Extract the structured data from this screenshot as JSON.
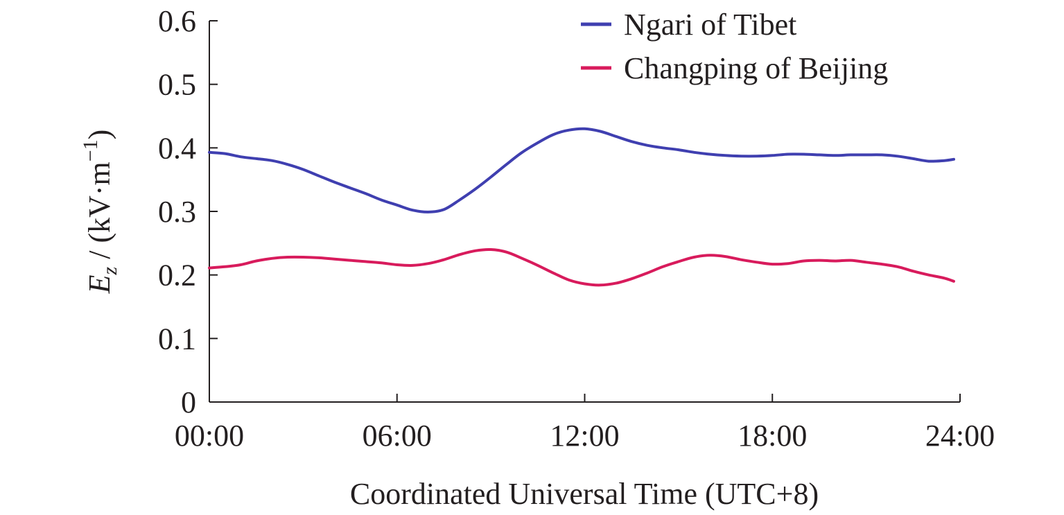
{
  "chart_data": {
    "type": "line",
    "title": "",
    "xlabel": "Coordinated Universal Time (UTC+8)",
    "ylabel": {
      "symbol": "E",
      "subscript": "z",
      "unit_prefix": " / (kV·m",
      "unit_exponent": "−1",
      "unit_suffix": ")"
    },
    "x_ticks": [
      "00:00",
      "06:00",
      "12:00",
      "18:00",
      "24:00"
    ],
    "x_tick_hours": [
      0,
      6,
      12,
      18,
      24
    ],
    "xlim_hours": [
      0,
      24
    ],
    "y_ticks": [
      "0",
      "0.1",
      "0.2",
      "0.3",
      "0.4",
      "0.5",
      "0.6"
    ],
    "y_tick_values": [
      0,
      0.1,
      0.2,
      0.3,
      0.4,
      0.5,
      0.6
    ],
    "ylim": [
      0,
      0.6
    ],
    "grid": false,
    "legend_position": "top-right",
    "series": [
      {
        "name": "Ngari of Tibet",
        "color": "#3f3fb0",
        "x_hours": [
          0,
          0.5,
          1,
          1.5,
          2,
          2.5,
          3,
          3.5,
          4,
          4.5,
          5,
          5.5,
          6,
          6.5,
          7,
          7.5,
          8,
          8.5,
          9,
          9.5,
          10,
          10.5,
          11,
          11.5,
          12,
          12.5,
          13,
          13.5,
          14,
          14.5,
          15,
          15.5,
          16,
          16.5,
          17,
          17.5,
          18,
          18.5,
          19,
          19.5,
          20,
          20.5,
          21,
          21.5,
          22,
          22.5,
          23,
          23.5,
          23.8
        ],
        "values": [
          0.393,
          0.391,
          0.386,
          0.383,
          0.38,
          0.374,
          0.366,
          0.356,
          0.346,
          0.337,
          0.328,
          0.318,
          0.31,
          0.302,
          0.299,
          0.303,
          0.318,
          0.335,
          0.354,
          0.374,
          0.393,
          0.408,
          0.421,
          0.428,
          0.43,
          0.426,
          0.418,
          0.41,
          0.404,
          0.4,
          0.397,
          0.393,
          0.39,
          0.388,
          0.387,
          0.387,
          0.388,
          0.39,
          0.39,
          0.389,
          0.388,
          0.389,
          0.389,
          0.389,
          0.387,
          0.383,
          0.379,
          0.38,
          0.382
        ]
      },
      {
        "name": "Changping of Beijing",
        "color": "#d81b5c",
        "x_hours": [
          0,
          0.5,
          1,
          1.5,
          2,
          2.5,
          3,
          3.5,
          4,
          4.5,
          5,
          5.5,
          6,
          6.5,
          7,
          7.5,
          8,
          8.5,
          9,
          9.5,
          10,
          10.5,
          11,
          11.5,
          12,
          12.5,
          13,
          13.5,
          14,
          14.5,
          15,
          15.5,
          16,
          16.5,
          17,
          17.5,
          18,
          18.5,
          19,
          19.5,
          20,
          20.5,
          21,
          21.5,
          22,
          22.5,
          23,
          23.5,
          23.8
        ],
        "values": [
          0.211,
          0.213,
          0.216,
          0.222,
          0.226,
          0.228,
          0.228,
          0.227,
          0.225,
          0.223,
          0.221,
          0.219,
          0.216,
          0.215,
          0.218,
          0.224,
          0.232,
          0.238,
          0.24,
          0.236,
          0.226,
          0.215,
          0.203,
          0.192,
          0.186,
          0.184,
          0.187,
          0.194,
          0.203,
          0.213,
          0.221,
          0.228,
          0.231,
          0.229,
          0.224,
          0.22,
          0.217,
          0.218,
          0.222,
          0.223,
          0.222,
          0.223,
          0.22,
          0.217,
          0.213,
          0.206,
          0.2,
          0.195,
          0.19
        ]
      }
    ]
  }
}
